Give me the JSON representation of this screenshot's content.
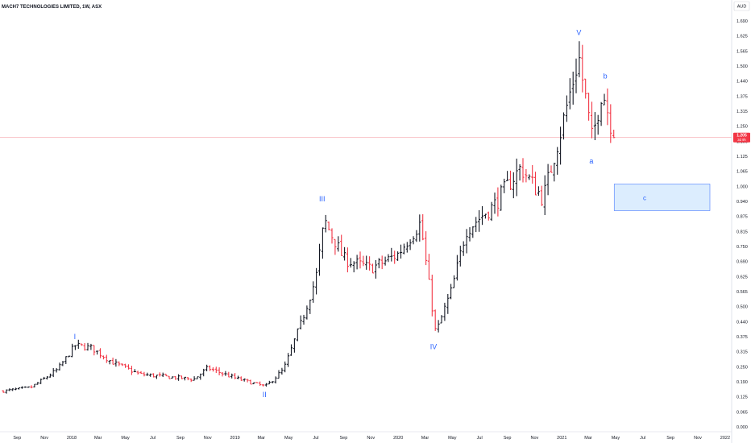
{
  "header": {
    "title": "MACH7 TECHNOLOGIES LIMITED, 1W, ASX",
    "currency": "AUD"
  },
  "price_tag": {
    "price": "1.205",
    "sub": "3d 9h"
  },
  "colors": {
    "up": "#131722",
    "down": "#f23645",
    "wave": "#2962ff",
    "zone_fill": "#d6eafe",
    "zone_stroke": "#2962ff",
    "last_line": "#f7a5ac"
  },
  "chart_data": {
    "type": "ohlc",
    "interval": "1W",
    "y_axis": {
      "min": 0.0,
      "max": 1.69,
      "scale": "log-like",
      "ticks": [
        "1.690",
        "1.625",
        "1.565",
        "1.500",
        "1.440",
        "1.375",
        "1.315",
        "1.250",
        "1.190",
        "1.125",
        "1.065",
        "1.000",
        "0.940",
        "0.875",
        "0.815",
        "0.750",
        "0.690",
        "0.625",
        "0.565",
        "0.500",
        "0.440",
        "0.375",
        "0.315",
        "0.250",
        "0.190",
        "0.125",
        "0.065",
        "0.000"
      ]
    },
    "x_axis": {
      "ticks": [
        "Sep",
        "Nov",
        "2018",
        "Mar",
        "May",
        "Jul",
        "Sep",
        "Nov",
        "2019",
        "Mar",
        "May",
        "Jul",
        "Sep",
        "Nov",
        "2020",
        "Mar",
        "May",
        "Jul",
        "Sep",
        "Nov",
        "2021",
        "Mar",
        "May",
        "Jul",
        "Sep",
        "Nov",
        "2022"
      ]
    },
    "last_price": 1.205,
    "anchors": [
      {
        "date": "2017-08-01",
        "close": 0.15
      },
      {
        "date": "2017-10-01",
        "close": 0.165
      },
      {
        "date": "2017-12-01",
        "close": 0.24
      },
      {
        "date": "2018-01-08",
        "close": 0.34
      },
      {
        "date": "2018-02-15",
        "close": 0.33
      },
      {
        "date": "2018-04-01",
        "close": 0.27
      },
      {
        "date": "2018-06-01",
        "close": 0.22
      },
      {
        "date": "2018-08-01",
        "close": 0.21
      },
      {
        "date": "2018-10-01",
        "close": 0.2
      },
      {
        "date": "2018-11-01",
        "close": 0.245
      },
      {
        "date": "2019-01-01",
        "close": 0.205
      },
      {
        "date": "2019-03-10",
        "close": 0.17
      },
      {
        "date": "2019-04-20",
        "close": 0.24
      },
      {
        "date": "2019-06-01",
        "close": 0.45
      },
      {
        "date": "2019-07-01",
        "close": 0.62
      },
      {
        "date": "2019-07-20",
        "close": 0.86
      },
      {
        "date": "2019-09-01",
        "close": 0.7
      },
      {
        "date": "2019-11-01",
        "close": 0.66
      },
      {
        "date": "2020-01-01",
        "close": 0.72
      },
      {
        "date": "2020-02-20",
        "close": 0.85
      },
      {
        "date": "2020-03-25",
        "close": 0.39
      },
      {
        "date": "2020-05-01",
        "close": 0.58
      },
      {
        "date": "2020-06-01",
        "close": 0.82
      },
      {
        "date": "2020-08-01",
        "close": 0.92
      },
      {
        "date": "2020-10-01",
        "close": 1.08
      },
      {
        "date": "2020-11-20",
        "close": 0.95
      },
      {
        "date": "2021-01-01",
        "close": 1.25
      },
      {
        "date": "2021-02-08",
        "close": 1.54
      },
      {
        "date": "2021-03-10",
        "close": 1.19
      },
      {
        "date": "2021-04-01",
        "close": 1.41
      },
      {
        "date": "2021-04-28",
        "close": 1.205
      }
    ],
    "annotations": [
      {
        "label": "I",
        "date": "2018-01-08",
        "price": 0.375,
        "pos": "above"
      },
      {
        "label": "II",
        "date": "2019-03-08",
        "price": 0.135,
        "pos": "below"
      },
      {
        "label": "III",
        "date": "2019-07-15",
        "price": 0.95,
        "pos": "above"
      },
      {
        "label": "IV",
        "date": "2020-03-20",
        "price": 0.335,
        "pos": "below"
      },
      {
        "label": "V",
        "date": "2021-02-08",
        "price": 1.64,
        "pos": "above"
      },
      {
        "label": "a",
        "date": "2021-03-08",
        "price": 1.105,
        "pos": "below"
      },
      {
        "label": "b",
        "date": "2021-04-08",
        "price": 1.46,
        "pos": "above"
      },
      {
        "label": "c",
        "date": "2021-07-05",
        "price": 0.955,
        "pos": "center"
      }
    ],
    "target_zone": {
      "start": "2021-04-28",
      "end": "2021-11-28",
      "top": 1.01,
      "bottom": 0.9,
      "label": "c"
    }
  }
}
